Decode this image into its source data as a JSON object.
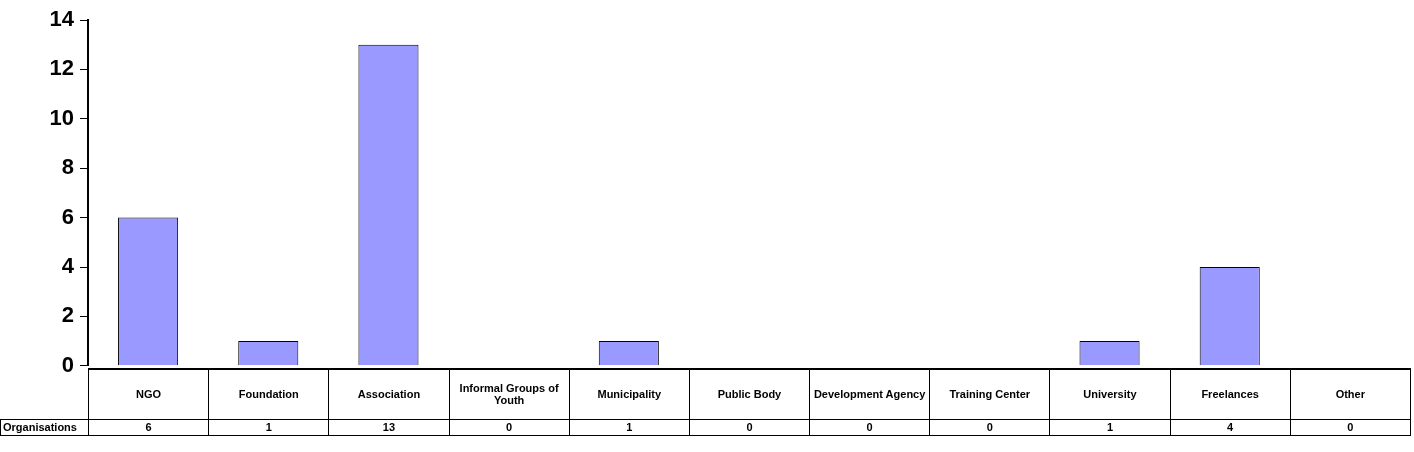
{
  "chart_data": {
    "type": "bar",
    "categories": [
      "NGO",
      "Foundation",
      "Association",
      "Informal Groups of Youth",
      "Municipality",
      "Public Body",
      "Development Agency",
      "Training Center",
      "University",
      "Freelances",
      "Other"
    ],
    "series": [
      {
        "name": "Organisations",
        "color": "#9999ff",
        "values": [
          6,
          1,
          13,
          0,
          1,
          0,
          0,
          0,
          1,
          4,
          0
        ]
      }
    ],
    "ylim": [
      0,
      14
    ],
    "yticks": [
      0,
      2,
      4,
      6,
      8,
      10,
      12,
      14
    ],
    "data_labels": true,
    "grid": false
  }
}
